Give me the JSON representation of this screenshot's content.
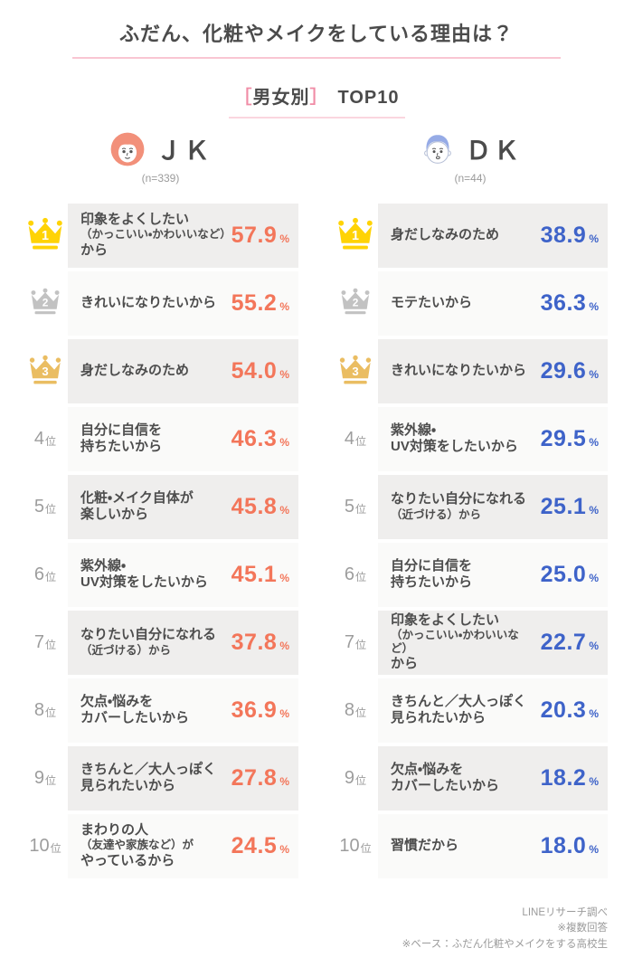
{
  "title": "ふだん、化粧やメイクをしている理由は？",
  "subtitle": {
    "bracket_open": "［",
    "bracket_label": "男女別",
    "bracket_close": "］",
    "suffix": "TOP10"
  },
  "rank_suffix": "位",
  "percent_sign": "%",
  "colors": {
    "accent_jk": "#f3765a",
    "accent_dk": "#3e63c9",
    "crown_gold": "#ffd305",
    "crown_silver": "#c2c2c2",
    "crown_bronze": "#eabd62",
    "row_odd_bg": "#efeeed",
    "row_even_bg": "#fafaf9",
    "pink_rule": "#f9c6d2",
    "pink_bracket": "#f08ca6",
    "text_dark": "#4b4b4b",
    "text_gray": "#9b9b9b"
  },
  "columns": [
    {
      "id": "jk",
      "label": "ＪＫ",
      "sample": "(n=339)",
      "accent": "#f3765a",
      "items": [
        {
          "rank": 1,
          "crown": "gold",
          "lines": [
            "印象をよくしたい",
            "（かっこいい・かわいいなど）",
            "から"
          ],
          "value": "57.9"
        },
        {
          "rank": 2,
          "crown": "silver",
          "lines": [
            "きれいになりたいから"
          ],
          "value": "55.2"
        },
        {
          "rank": 3,
          "crown": "bronze",
          "lines": [
            "身だしなみのため"
          ],
          "value": "54.0"
        },
        {
          "rank": 4,
          "lines": [
            "自分に自信を",
            "持ちたいから"
          ],
          "value": "46.3"
        },
        {
          "rank": 5,
          "lines": [
            "化粧・メイク自体が",
            "楽しいから"
          ],
          "value": "45.8"
        },
        {
          "rank": 6,
          "lines": [
            "紫外線・",
            "UV対策をしたいから"
          ],
          "value": "45.1"
        },
        {
          "rank": 7,
          "lines": [
            "なりたい自分になれる",
            "（近づける）から"
          ],
          "value": "37.8"
        },
        {
          "rank": 8,
          "lines": [
            "欠点・悩みを",
            "カバーしたいから"
          ],
          "value": "36.9"
        },
        {
          "rank": 9,
          "lines": [
            "きちんと／大人っぽく",
            "見られたいから"
          ],
          "value": "27.8"
        },
        {
          "rank": 10,
          "lines": [
            "まわりの人",
            "（友達や家族など）が",
            "やっているから"
          ],
          "value": "24.5"
        }
      ]
    },
    {
      "id": "dk",
      "label": "ＤＫ",
      "sample": "(n=44)",
      "accent": "#3e63c9",
      "items": [
        {
          "rank": 1,
          "crown": "gold",
          "lines": [
            "身だしなみのため"
          ],
          "value": "38.9"
        },
        {
          "rank": 2,
          "crown": "silver",
          "lines": [
            "モテたいから"
          ],
          "value": "36.3"
        },
        {
          "rank": 3,
          "crown": "bronze",
          "lines": [
            "きれいになりたいから"
          ],
          "value": "29.6"
        },
        {
          "rank": 4,
          "lines": [
            "紫外線・",
            "UV対策をしたいから"
          ],
          "value": "29.5"
        },
        {
          "rank": 5,
          "lines": [
            "なりたい自分になれる",
            "（近づける）から"
          ],
          "value": "25.1"
        },
        {
          "rank": 6,
          "lines": [
            "自分に自信を",
            "持ちたいから"
          ],
          "value": "25.0"
        },
        {
          "rank": 7,
          "lines": [
            "印象をよくしたい",
            "（かっこいい・かわいいなど）",
            "から"
          ],
          "value": "22.7"
        },
        {
          "rank": 8,
          "lines": [
            "きちんと／大人っぽく",
            "見られたいから"
          ],
          "value": "20.3"
        },
        {
          "rank": 9,
          "lines": [
            "欠点・悩みを",
            "カバーしたいから"
          ],
          "value": "18.2"
        },
        {
          "rank": 10,
          "lines": [
            "習慣だから"
          ],
          "value": "18.0"
        }
      ]
    }
  ],
  "footer": [
    "LINEリサーチ調べ",
    "※複数回答",
    "※ベース：ふだん化粧やメイクをする高校生"
  ],
  "chart_data": {
    "type": "table",
    "title": "ふだん、化粧やメイクをしている理由は？",
    "subtitle": "［男女別］TOP10",
    "unit": "%",
    "series": [
      {
        "name": "ＪＫ (n=339)",
        "categories": [
          "印象をよくしたい（かっこいい・かわいいなど）から",
          "きれいになりたいから",
          "身だしなみのため",
          "自分に自信を持ちたいから",
          "化粧・メイク自体が楽しいから",
          "紫外線・UV対策をしたいから",
          "なりたい自分になれる（近づける）から",
          "欠点・悩みをカバーしたいから",
          "きちんと／大人っぽく見られたいから",
          "まわりの人（友達や家族など）がやっているから"
        ],
        "values": [
          57.9,
          55.2,
          54.0,
          46.3,
          45.8,
          45.1,
          37.8,
          36.9,
          27.8,
          24.5
        ]
      },
      {
        "name": "ＤＫ (n=44)",
        "categories": [
          "身だしなみのため",
          "モテたいから",
          "きれいになりたいから",
          "紫外線・UV対策をしたいから",
          "なりたい自分になれる（近づける）から",
          "自分に自信を持ちたいから",
          "印象をよくしたい（かっこいい・かわいいなど）から",
          "きちんと／大人っぽく見られたいから",
          "欠点・悩みをカバーしたいから",
          "習慣だから"
        ],
        "values": [
          38.9,
          36.3,
          29.6,
          29.5,
          25.1,
          25.0,
          22.7,
          20.3,
          18.2,
          18.0
        ]
      }
    ]
  }
}
